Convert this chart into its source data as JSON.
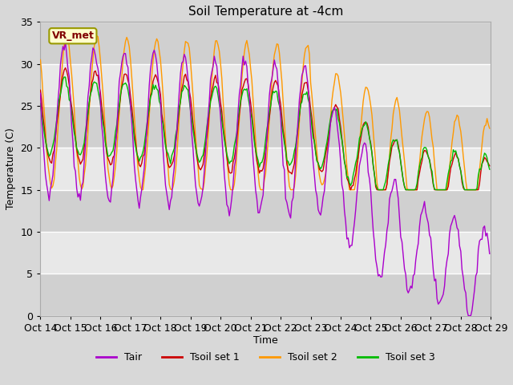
{
  "title": "Soil Temperature at -4cm",
  "xlabel": "Time",
  "ylabel": "Temperature (C)",
  "ylim": [
    0,
    35
  ],
  "annotation_text": "VR_met",
  "annotation_box_color": "#ffffcc",
  "annotation_text_color": "#800000",
  "annotation_border_color": "#999900",
  "fig_bg_color": "#d8d8d8",
  "plot_bg_color": "#e8e8e8",
  "grid_color": "#ffffff",
  "colors": {
    "Tair": "#aa00cc",
    "Tsoil1": "#cc0000",
    "Tsoil2": "#ff9900",
    "Tsoil3": "#00bb00"
  },
  "legend_labels": [
    "Tair",
    "Tsoil set 1",
    "Tsoil set 2",
    "Tsoil set 3"
  ],
  "xtick_labels": [
    "Oct 14",
    "Oct 15",
    "Oct 16",
    "Oct 17",
    "Oct 18",
    "Oct 19",
    "Oct 20",
    "Oct 21",
    "Oct 22",
    "Oct 23",
    "Oct 24",
    "Oct 25",
    "Oct 26",
    "Oct 27",
    "Oct 28",
    "Oct 29"
  ],
  "n_days": 15,
  "points_per_day": 24
}
